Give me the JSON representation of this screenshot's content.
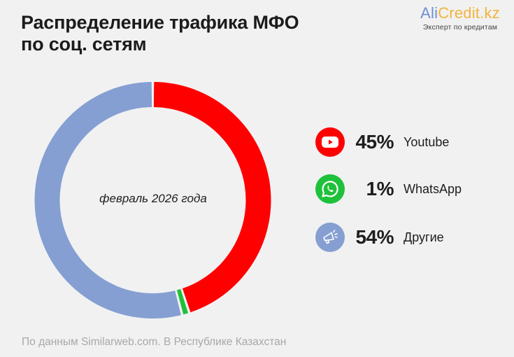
{
  "header": {
    "title_line1": "Распределение трафика МФО",
    "title_line2": "по соц. сетям"
  },
  "brand": {
    "name_part1": "Ali",
    "name_part2": "Credit.kz",
    "tagline": "Эксперт по кредитам"
  },
  "center_label": "февраль 2026 года",
  "legend": [
    {
      "pct": "45%",
      "name": "Youtube",
      "icon": "youtube-icon",
      "color": "#fe0000"
    },
    {
      "pct": "1%",
      "name": "WhatsApp",
      "icon": "whatsapp-icon",
      "color": "#1fc13a"
    },
    {
      "pct": "54%",
      "name": "Другие",
      "icon": "megaphone-icon",
      "color": "#859fd2"
    }
  ],
  "footer": "По данным Similarweb.com. В Республике Казахстан",
  "chart_data": {
    "type": "pie",
    "subtype": "donut",
    "title": "Распределение трафика МФО по соц. сетям",
    "subtitle": "февраль 2026 года",
    "categories": [
      "Youtube",
      "WhatsApp",
      "Другие"
    ],
    "values": [
      45,
      1,
      54
    ],
    "unit": "%",
    "colors": [
      "#fe0000",
      "#1fc13a",
      "#859fd2"
    ],
    "legend_position": "right",
    "start_angle": "12 o'clock, clockwise",
    "source": "По данным Similarweb.com. В Республике Казахстан"
  }
}
